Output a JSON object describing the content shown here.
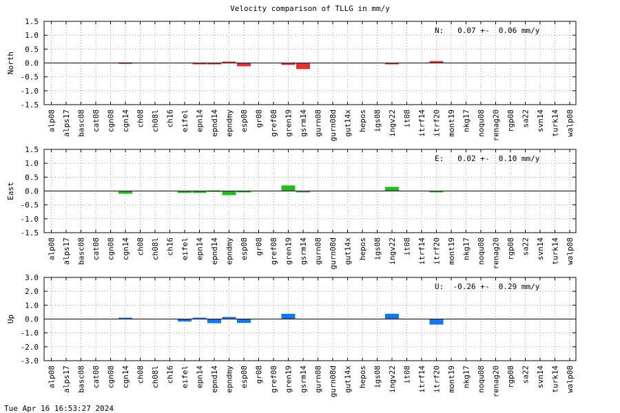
{
  "title": "Velocity comparison of TLLG in mm/y",
  "footer": "Tue Apr 16 16:53:27 2024",
  "chart_data": {
    "type": "bar",
    "categories": [
      "alp08",
      "alps17",
      "basc08",
      "cat08",
      "cgn08",
      "cgn14",
      "ch08",
      "ch08l",
      "ch16",
      "eifel",
      "epn14",
      "epnd14",
      "epndmy",
      "esp08",
      "gr08",
      "gref08",
      "gren19",
      "gsrm14",
      "gurn08",
      "gurn08d",
      "gut14x",
      "hepos",
      "igs08",
      "ingv22",
      "it08",
      "itrf14",
      "itrf20",
      "mont19",
      "nkg17",
      "noqu08",
      "renag20",
      "rgp08",
      "sa22",
      "svn14",
      "turk14",
      "walp08"
    ],
    "panels": [
      {
        "ylabel": "North",
        "summary": "N:   0.07 +-  0.06 mm/y",
        "color": "#dd3333",
        "ylim": [
          -1.5,
          1.5
        ],
        "yticks": [
          -1.5,
          -1.0,
          -0.5,
          0.0,
          0.5,
          1.0,
          1.5
        ],
        "ytick_labels": [
          "-1.5",
          "-1.0",
          "-0.5",
          "0.0",
          "0.5",
          "1.0",
          "1.5"
        ],
        "values": [
          0,
          0,
          0,
          0,
          0,
          0.02,
          0,
          0,
          0,
          0,
          -0.03,
          -0.05,
          0.05,
          -0.12,
          0,
          0,
          -0.07,
          -0.22,
          0,
          0,
          0,
          0,
          0,
          -0.03,
          0,
          0,
          0.07,
          0,
          0,
          0,
          0,
          0,
          0,
          0,
          0,
          0
        ]
      },
      {
        "ylabel": "East",
        "summary": "E:   0.02 +-  0.10 mm/y",
        "color": "#22bb22",
        "ylim": [
          -1.5,
          1.5
        ],
        "yticks": [
          -1.5,
          -1.0,
          -0.5,
          0.0,
          0.5,
          1.0,
          1.5
        ],
        "ytick_labels": [
          "-1.5",
          "-1.0",
          "-0.5",
          "0.0",
          "0.5",
          "1.0",
          "1.5"
        ],
        "values": [
          0,
          0,
          0,
          0,
          0,
          -0.1,
          0,
          0,
          0,
          -0.07,
          -0.07,
          0.02,
          -0.15,
          -0.05,
          0,
          0,
          0.2,
          -0.05,
          0,
          0,
          0,
          0,
          0,
          0.15,
          0,
          0,
          -0.03,
          0,
          0,
          0,
          0,
          0,
          0,
          0,
          0,
          0
        ]
      },
      {
        "ylabel": "Up",
        "summary": "U:  -0.26 +-  0.29 mm/y",
        "color": "#1177ee",
        "ylim": [
          -3.0,
          3.0
        ],
        "yticks": [
          -3.0,
          -2.0,
          -1.0,
          0.0,
          1.0,
          2.0,
          3.0
        ],
        "ytick_labels": [
          "-3.0",
          "-2.0",
          "-1.0",
          "0.0",
          "1.0",
          "2.0",
          "3.0"
        ],
        "values": [
          0,
          0,
          0,
          0,
          0,
          0.1,
          0,
          0,
          0,
          -0.18,
          0.1,
          -0.3,
          0.15,
          -0.28,
          0,
          0,
          0.38,
          0,
          0,
          0,
          0,
          0,
          0,
          0.38,
          0,
          0,
          -0.4,
          0,
          0,
          0,
          0,
          0,
          0,
          0,
          0,
          0
        ]
      }
    ],
    "grid": true
  }
}
